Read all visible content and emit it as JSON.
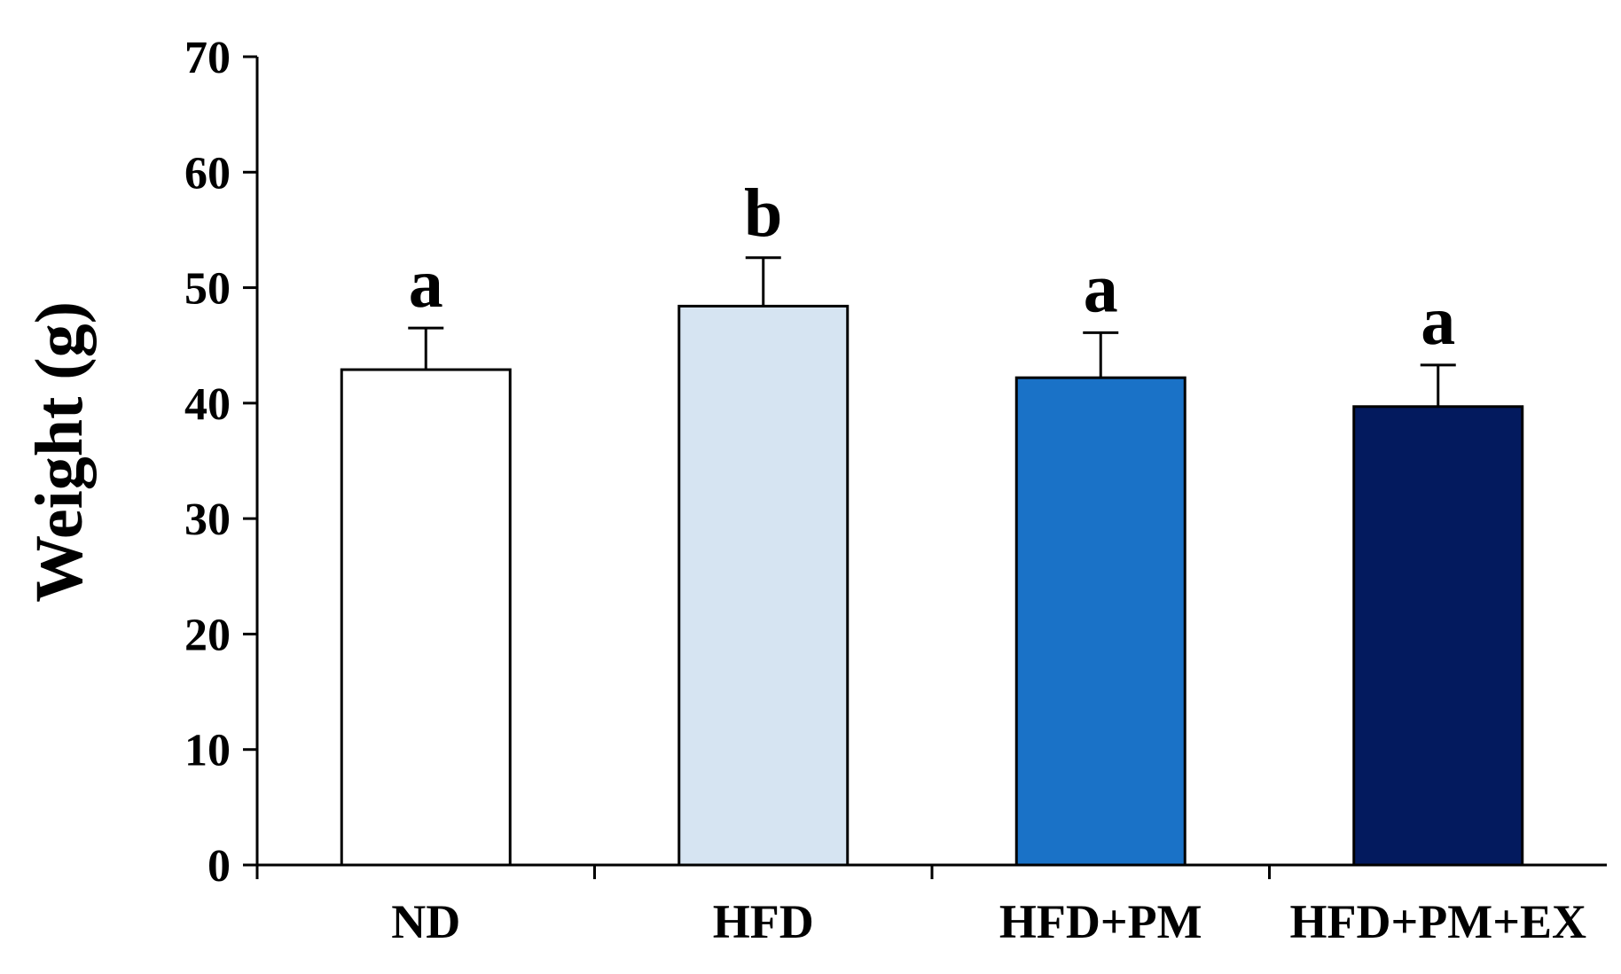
{
  "chart_data": {
    "type": "bar",
    "title": "",
    "xlabel": "",
    "ylabel": "Weight (g)",
    "ylim": [
      0,
      70
    ],
    "yticks": [
      0,
      10,
      20,
      30,
      40,
      50,
      60,
      70
    ],
    "ytick_labels": [
      "0",
      "10",
      "20",
      "30",
      "40",
      "50",
      "60",
      "70"
    ],
    "categories": [
      "ND",
      "HFD",
      "HFD+PM",
      "HFD+PM+EX"
    ],
    "values": [
      42.9,
      48.4,
      42.2,
      39.7
    ],
    "errors": [
      3.6,
      4.2,
      3.9,
      3.6
    ],
    "significance": [
      "a",
      "b",
      "a",
      "a"
    ],
    "bar_colors": [
      "#ffffff",
      "#d6e4f2",
      "#1a72c7",
      "#031a5e"
    ],
    "grid": false,
    "legend": "none"
  }
}
